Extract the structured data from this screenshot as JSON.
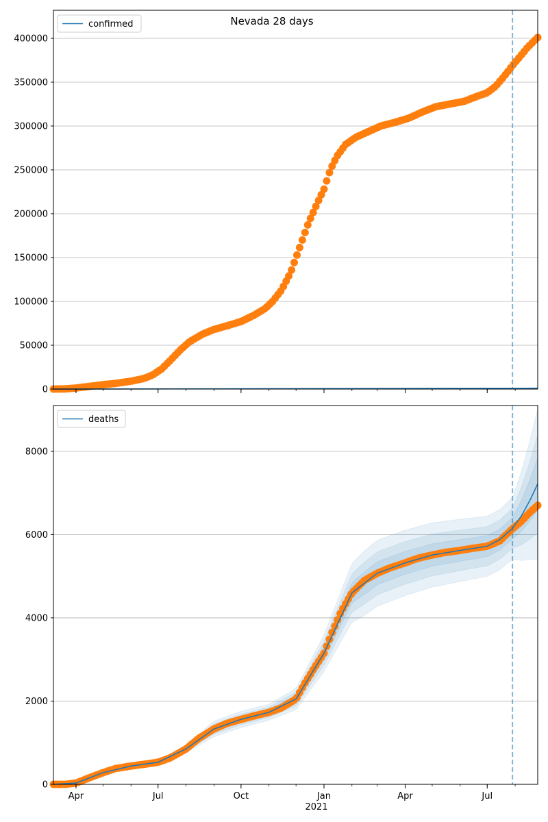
{
  "figure": {
    "title": "Nevada 28 days",
    "x_year_label": "2021"
  },
  "colors": {
    "observed": "#ff7f0e",
    "model": "#1f77b4",
    "band": "#1f77b4",
    "vline": "#1f77b4",
    "grid": "#b0b0b0"
  },
  "chart_data": [
    {
      "type": "line",
      "name": "confirmed-panel",
      "legend": "confirmed",
      "legend_position": "top-left",
      "grid": "y",
      "x_range": [
        "2020-03-07",
        "2021-08-26"
      ],
      "ylim": [
        0,
        432000
      ],
      "yticks": [
        0,
        50000,
        100000,
        150000,
        200000,
        250000,
        300000,
        350000,
        400000
      ],
      "xticks": [
        {
          "date": "2020-04-01",
          "label": "Apr"
        },
        {
          "date": "2020-07-01",
          "label": "Jul"
        },
        {
          "date": "2020-10-01",
          "label": "Oct"
        },
        {
          "date": "2021-01-01",
          "label": "Jan"
        },
        {
          "date": "2021-04-01",
          "label": "Apr"
        },
        {
          "date": "2021-07-01",
          "label": "Jul"
        }
      ],
      "forecast_start": "2021-07-29",
      "observed": [
        [
          "2020-03-07",
          0
        ],
        [
          "2020-03-20",
          200
        ],
        [
          "2020-04-01",
          1200
        ],
        [
          "2020-04-15",
          3000
        ],
        [
          "2020-05-01",
          5000
        ],
        [
          "2020-05-15",
          6500
        ],
        [
          "2020-06-01",
          9000
        ],
        [
          "2020-06-15",
          12000
        ],
        [
          "2020-06-25",
          16000
        ],
        [
          "2020-07-05",
          23000
        ],
        [
          "2020-07-15",
          33000
        ],
        [
          "2020-07-25",
          44000
        ],
        [
          "2020-08-05",
          54000
        ],
        [
          "2020-08-20",
          63000
        ],
        [
          "2020-09-01",
          68000
        ],
        [
          "2020-09-15",
          72000
        ],
        [
          "2020-10-01",
          77000
        ],
        [
          "2020-10-15",
          84000
        ],
        [
          "2020-10-28",
          92000
        ],
        [
          "2020-11-05",
          100000
        ],
        [
          "2020-11-15",
          113000
        ],
        [
          "2020-11-25",
          133000
        ],
        [
          "2020-12-01",
          150000
        ],
        [
          "2020-12-08",
          170000
        ],
        [
          "2020-12-15",
          190000
        ],
        [
          "2020-12-25",
          213000
        ],
        [
          "2021-01-01",
          228000
        ],
        [
          "2021-01-08",
          250000
        ],
        [
          "2021-01-15",
          265000
        ],
        [
          "2021-01-25",
          279000
        ],
        [
          "2021-02-05",
          287000
        ],
        [
          "2021-02-20",
          294000
        ],
        [
          "2021-03-05",
          300000
        ],
        [
          "2021-03-20",
          304000
        ],
        [
          "2021-04-05",
          309000
        ],
        [
          "2021-04-20",
          316000
        ],
        [
          "2021-05-05",
          322000
        ],
        [
          "2021-05-20",
          325000
        ],
        [
          "2021-06-05",
          328000
        ],
        [
          "2021-06-20",
          334000
        ],
        [
          "2021-07-01",
          338000
        ],
        [
          "2021-07-10",
          345000
        ],
        [
          "2021-07-20",
          357000
        ],
        [
          "2021-07-29",
          369000
        ],
        [
          "2021-08-07",
          380000
        ],
        [
          "2021-08-15",
          390000
        ],
        [
          "2021-08-26",
          401000
        ]
      ],
      "model": [
        [
          "2020-03-07",
          0
        ],
        [
          "2021-08-26",
          1000
        ]
      ]
    },
    {
      "type": "line",
      "name": "deaths-panel",
      "legend": "deaths",
      "legend_position": "top-left",
      "grid": "y",
      "x_range": [
        "2020-03-07",
        "2021-08-26"
      ],
      "ylim": [
        0,
        9100
      ],
      "yticks": [
        0,
        2000,
        4000,
        6000,
        8000
      ],
      "xticks": [
        {
          "date": "2020-04-01",
          "label": "Apr"
        },
        {
          "date": "2020-07-01",
          "label": "Jul"
        },
        {
          "date": "2020-10-01",
          "label": "Oct"
        },
        {
          "date": "2021-01-01",
          "label": "Jan"
        },
        {
          "date": "2021-04-01",
          "label": "Apr"
        },
        {
          "date": "2021-07-01",
          "label": "Jul"
        }
      ],
      "forecast_start": "2021-07-29",
      "observed": [
        [
          "2020-03-07",
          0
        ],
        [
          "2020-03-20",
          0
        ],
        [
          "2020-04-01",
          30
        ],
        [
          "2020-04-15",
          150
        ],
        [
          "2020-05-01",
          280
        ],
        [
          "2020-05-15",
          380
        ],
        [
          "2020-06-01",
          440
        ],
        [
          "2020-06-15",
          480
        ],
        [
          "2020-07-01",
          530
        ],
        [
          "2020-07-15",
          640
        ],
        [
          "2020-08-01",
          850
        ],
        [
          "2020-08-15",
          1100
        ],
        [
          "2020-09-01",
          1330
        ],
        [
          "2020-09-15",
          1460
        ],
        [
          "2020-10-01",
          1560
        ],
        [
          "2020-10-15",
          1640
        ],
        [
          "2020-11-01",
          1730
        ],
        [
          "2020-11-15",
          1840
        ],
        [
          "2020-12-01",
          2050
        ],
        [
          "2020-12-10",
          2400
        ],
        [
          "2020-12-20",
          2750
        ],
        [
          "2021-01-01",
          3150
        ],
        [
          "2021-01-10",
          3650
        ],
        [
          "2021-01-20",
          4150
        ],
        [
          "2021-02-01",
          4600
        ],
        [
          "2021-02-15",
          4900
        ],
        [
          "2021-03-01",
          5070
        ],
        [
          "2021-03-15",
          5200
        ],
        [
          "2021-04-01",
          5320
        ],
        [
          "2021-04-15",
          5430
        ],
        [
          "2021-05-01",
          5510
        ],
        [
          "2021-05-15",
          5570
        ],
        [
          "2021-06-01",
          5620
        ],
        [
          "2021-06-15",
          5670
        ],
        [
          "2021-07-01",
          5720
        ],
        [
          "2021-07-15",
          5850
        ],
        [
          "2021-07-29",
          6140
        ],
        [
          "2021-08-08",
          6320
        ],
        [
          "2021-08-18",
          6550
        ],
        [
          "2021-08-26",
          6700
        ]
      ],
      "model": [
        [
          "2020-03-07",
          0
        ],
        [
          "2020-04-01",
          30
        ],
        [
          "2020-05-01",
          280
        ],
        [
          "2020-06-01",
          440
        ],
        [
          "2020-07-01",
          530
        ],
        [
          "2020-08-01",
          850
        ],
        [
          "2020-09-01",
          1330
        ],
        [
          "2020-10-01",
          1560
        ],
        [
          "2020-11-01",
          1730
        ],
        [
          "2020-12-01",
          2050
        ],
        [
          "2021-01-01",
          3150
        ],
        [
          "2021-02-01",
          4600
        ],
        [
          "2021-03-01",
          5070
        ],
        [
          "2021-04-01",
          5320
        ],
        [
          "2021-05-01",
          5510
        ],
        [
          "2021-06-01",
          5620
        ],
        [
          "2021-07-01",
          5720
        ],
        [
          "2021-07-15",
          5880
        ],
        [
          "2021-07-29",
          6150
        ],
        [
          "2021-08-08",
          6450
        ],
        [
          "2021-08-18",
          6850
        ],
        [
          "2021-08-26",
          7220
        ]
      ],
      "band_spread": [
        [
          "2020-03-07",
          0
        ],
        [
          "2020-04-01",
          0.05
        ],
        [
          "2020-06-01",
          0.07
        ],
        [
          "2020-09-01",
          0.14
        ],
        [
          "2020-11-01",
          0.11
        ],
        [
          "2021-01-01",
          0.14
        ],
        [
          "2021-02-15",
          0.16
        ],
        [
          "2021-05-01",
          0.14
        ],
        [
          "2021-07-29",
          0.12
        ],
        [
          "2021-08-26",
          0.25
        ]
      ],
      "band_levels": [
        1.0,
        0.65,
        0.35
      ]
    }
  ]
}
